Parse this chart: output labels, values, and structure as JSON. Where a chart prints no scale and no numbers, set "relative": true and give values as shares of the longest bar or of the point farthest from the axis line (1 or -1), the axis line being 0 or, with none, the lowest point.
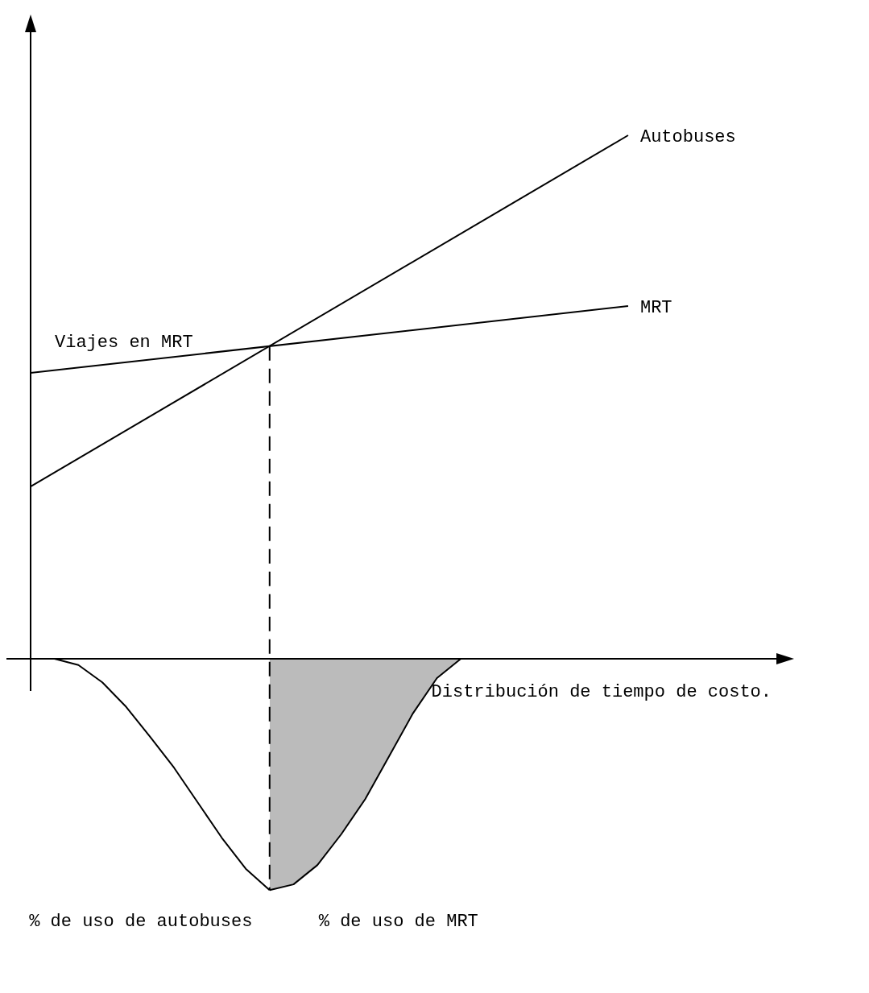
{
  "chart_data": {
    "type": "line",
    "relative": true,
    "xlabel": "Distribución de tiempo de costo.",
    "grid": false,
    "legend": false,
    "marker": "none",
    "categories": [
      null,
      null,
      null,
      null,
      null,
      null,
      null,
      null,
      null,
      null,
      null,
      null,
      null,
      null,
      null,
      null,
      null,
      null,
      null,
      null,
      null,
      null,
      null,
      null,
      null,
      null,
      null,
      null,
      null,
      null,
      null,
      null
    ],
    "series": [
      {
        "name": "Autobuses",
        "type": "line",
        "color": "#000000",
        "values": [
          0.329,
          null,
          null,
          null,
          null,
          null,
          null,
          null,
          null,
          null,
          null,
          null,
          null,
          null,
          null,
          null,
          null,
          null,
          null,
          null,
          null,
          null,
          null,
          null,
          null,
          1.0,
          null,
          null,
          null,
          null,
          null,
          null
        ]
      },
      {
        "name": "MRT",
        "type": "line",
        "color": "#000000",
        "values": [
          0.546,
          null,
          null,
          null,
          null,
          null,
          null,
          null,
          null,
          null,
          null,
          null,
          null,
          null,
          null,
          null,
          null,
          null,
          null,
          null,
          null,
          null,
          null,
          null,
          null,
          0.674,
          null,
          null,
          null,
          null,
          null,
          null
        ]
      },
      {
        "name": "% de uso de autobuses",
        "type": "line",
        "color": "#000000",
        "values": [
          null,
          0,
          -0.012,
          -0.045,
          -0.092,
          -0.149,
          -0.208,
          -0.275,
          -0.342,
          -0.401,
          -0.442,
          null,
          null,
          null,
          null,
          null,
          null,
          null,
          null,
          null,
          null,
          null,
          null,
          null,
          null,
          null,
          null,
          null,
          null,
          null,
          null,
          null
        ]
      },
      {
        "name": "% de uso de MRT",
        "type": "area",
        "color": "#000000",
        "values": [
          null,
          null,
          null,
          null,
          null,
          null,
          null,
          null,
          null,
          null,
          -0.442,
          -0.431,
          -0.394,
          -0.335,
          -0.268,
          -0.186,
          -0.104,
          -0.037,
          0,
          null,
          null,
          null,
          null,
          null,
          null,
          null,
          null,
          null,
          null,
          null,
          null,
          null
        ]
      }
    ],
    "annotations": [
      "Viajes en MRT"
    ]
  }
}
